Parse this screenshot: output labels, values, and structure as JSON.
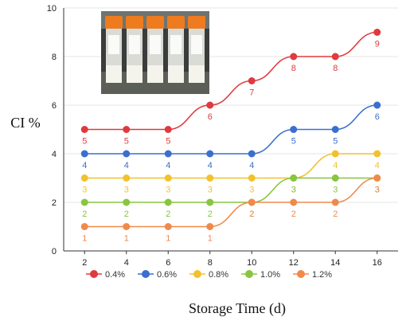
{
  "chart_data": {
    "type": "line",
    "x": [
      2,
      4,
      6,
      8,
      10,
      12,
      14,
      16
    ],
    "xlabel": "Storage Time (d)",
    "ylabel": "CI %",
    "ylim": [
      0,
      10
    ],
    "yticks": [
      0,
      2,
      4,
      6,
      8,
      10
    ],
    "grid": "horizontal",
    "legend": "bottom",
    "inset_photo": "sample-tubes",
    "series": [
      {
        "name": "0.4%",
        "color": "#e03a3e",
        "values": [
          5,
          5,
          5,
          6,
          7,
          8,
          8,
          9
        ]
      },
      {
        "name": "0.6%",
        "color": "#3a6fcf",
        "values": [
          4,
          4,
          4,
          4,
          4,
          5,
          5,
          6
        ]
      },
      {
        "name": "0.8%",
        "color": "#f2c12e",
        "values": [
          3,
          3,
          3,
          3,
          3,
          3,
          4,
          4
        ]
      },
      {
        "name": "1.0%",
        "color": "#88c540",
        "values": [
          2,
          2,
          2,
          2,
          2,
          3,
          3,
          3
        ]
      },
      {
        "name": "1.2%",
        "color": "#f08a4b",
        "values": [
          1,
          1,
          1,
          1,
          2,
          2,
          2,
          3
        ]
      }
    ]
  }
}
